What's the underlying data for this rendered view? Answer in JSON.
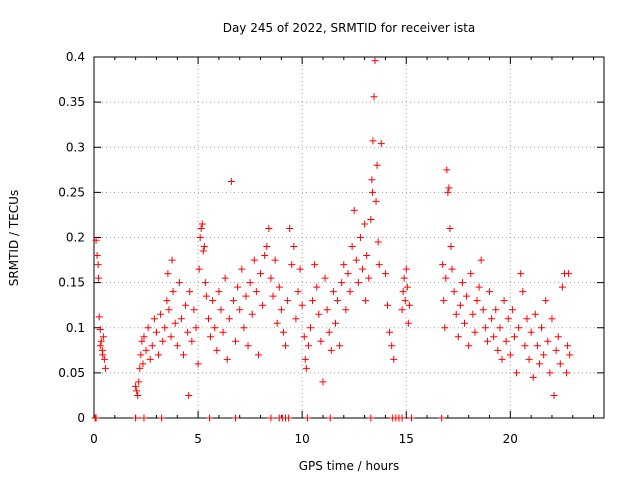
{
  "chart_data": {
    "type": "scatter",
    "title": "Day 245 of 2022, SRMTID for receiver ista",
    "xlabel": "GPS time / hours",
    "ylabel": "SRMTID / TECUs",
    "xlim": [
      0,
      24.5
    ],
    "ylim": [
      0,
      0.4
    ],
    "grid": true,
    "marker": "+",
    "color": "#ff0000",
    "x_ticks": [
      0,
      5,
      10,
      15,
      20
    ],
    "x_tick_labels": [
      "0",
      "5",
      "10",
      "15",
      "20"
    ],
    "y_ticks": [
      0,
      0.05,
      0.1,
      0.15,
      0.2,
      0.25,
      0.3,
      0.35,
      0.4
    ],
    "y_tick_labels": [
      "0",
      "0.05",
      "0.1",
      "0.15",
      "0.2",
      "0.25",
      "0.3",
      "0.35",
      "0.4"
    ],
    "series": [
      {
        "name": "SRMTID",
        "points": [
          [
            0.1,
            0.197
          ],
          [
            0.15,
            0.18
          ],
          [
            0.2,
            0.17
          ],
          [
            0.22,
            0.155
          ],
          [
            0.25,
            0.112
          ],
          [
            0.3,
            0.098
          ],
          [
            0.35,
            0.085
          ],
          [
            0.4,
            0.075
          ],
          [
            0.45,
            0.09
          ],
          [
            0.5,
            0.065
          ],
          [
            0.55,
            0.055
          ],
          [
            0.3,
            0.08
          ],
          [
            0.42,
            0.07
          ],
          [
            2.0,
            0.035
          ],
          [
            2.05,
            0.03
          ],
          [
            2.1,
            0.025
          ],
          [
            2.15,
            0.04
          ],
          [
            2.2,
            0.055
          ],
          [
            2.25,
            0.07
          ],
          [
            2.3,
            0.085
          ],
          [
            2.35,
            0.06
          ],
          [
            2.4,
            0.09
          ],
          [
            2.5,
            0.075
          ],
          [
            2.6,
            0.1
          ],
          [
            2.7,
            0.065
          ],
          [
            2.8,
            0.08
          ],
          [
            2.9,
            0.11
          ],
          [
            3.0,
            0.095
          ],
          [
            3.1,
            0.07
          ],
          [
            3.2,
            0.115
          ],
          [
            3.3,
            0.085
          ],
          [
            3.4,
            0.1
          ],
          [
            3.5,
            0.13
          ],
          [
            3.55,
            0.16
          ],
          [
            3.6,
            0.12
          ],
          [
            3.7,
            0.09
          ],
          [
            3.75,
            0.175
          ],
          [
            3.8,
            0.14
          ],
          [
            3.9,
            0.105
          ],
          [
            4.0,
            0.08
          ],
          [
            4.1,
            0.15
          ],
          [
            4.2,
            0.11
          ],
          [
            4.3,
            0.07
          ],
          [
            4.4,
            0.125
          ],
          [
            4.5,
            0.095
          ],
          [
            4.55,
            0.025
          ],
          [
            4.6,
            0.14
          ],
          [
            4.7,
            0.085
          ],
          [
            4.8,
            0.12
          ],
          [
            4.9,
            0.1
          ],
          [
            5.0,
            0.06
          ],
          [
            5.05,
            0.165
          ],
          [
            5.1,
            0.2
          ],
          [
            5.15,
            0.21
          ],
          [
            5.2,
            0.215
          ],
          [
            5.25,
            0.185
          ],
          [
            5.3,
            0.19
          ],
          [
            5.35,
            0.15
          ],
          [
            5.4,
            0.135
          ],
          [
            5.5,
            0.11
          ],
          [
            5.6,
            0.09
          ],
          [
            5.7,
            0.13
          ],
          [
            5.8,
            0.1
          ],
          [
            5.9,
            0.075
          ],
          [
            6.0,
            0.14
          ],
          [
            6.1,
            0.12
          ],
          [
            6.2,
            0.095
          ],
          [
            6.3,
            0.155
          ],
          [
            6.4,
            0.065
          ],
          [
            6.5,
            0.11
          ],
          [
            6.6,
            0.262
          ],
          [
            6.7,
            0.13
          ],
          [
            6.8,
            0.085
          ],
          [
            6.9,
            0.145
          ],
          [
            7.0,
            0.12
          ],
          [
            7.1,
            0.165
          ],
          [
            7.2,
            0.1
          ],
          [
            7.3,
            0.135
          ],
          [
            7.4,
            0.08
          ],
          [
            7.5,
            0.15
          ],
          [
            7.6,
            0.115
          ],
          [
            7.7,
            0.175
          ],
          [
            7.8,
            0.14
          ],
          [
            7.9,
            0.07
          ],
          [
            8.0,
            0.16
          ],
          [
            8.1,
            0.125
          ],
          [
            8.2,
            0.18
          ],
          [
            8.3,
            0.19
          ],
          [
            8.4,
            0.21
          ],
          [
            8.5,
            0.155
          ],
          [
            8.6,
            0.135
          ],
          [
            8.7,
            0.175
          ],
          [
            8.8,
            0.105
          ],
          [
            8.9,
            0.145
          ],
          [
            9.0,
            0.12
          ],
          [
            9.1,
            0.095
          ],
          [
            9.2,
            0.08
          ],
          [
            9.3,
            0.13
          ],
          [
            9.4,
            0.21
          ],
          [
            9.5,
            0.17
          ],
          [
            9.6,
            0.19
          ],
          [
            9.7,
            0.11
          ],
          [
            9.8,
            0.14
          ],
          [
            9.9,
            0.165
          ],
          [
            10.0,
            0.125
          ],
          [
            10.1,
            0.09
          ],
          [
            10.15,
            0.065
          ],
          [
            10.2,
            0.055
          ],
          [
            10.3,
            0.08
          ],
          [
            10.4,
            0.1
          ],
          [
            10.5,
            0.13
          ],
          [
            10.6,
            0.17
          ],
          [
            10.7,
            0.145
          ],
          [
            10.8,
            0.115
          ],
          [
            10.9,
            0.085
          ],
          [
            11.0,
            0.04
          ],
          [
            11.1,
            0.155
          ],
          [
            11.2,
            0.12
          ],
          [
            11.3,
            0.095
          ],
          [
            11.4,
            0.075
          ],
          [
            11.5,
            0.14
          ],
          [
            11.6,
            0.105
          ],
          [
            11.7,
            0.13
          ],
          [
            11.8,
            0.08
          ],
          [
            11.9,
            0.15
          ],
          [
            12.0,
            0.17
          ],
          [
            12.1,
            0.12
          ],
          [
            12.2,
            0.16
          ],
          [
            12.3,
            0.14
          ],
          [
            12.4,
            0.19
          ],
          [
            12.5,
            0.23
          ],
          [
            12.6,
            0.175
          ],
          [
            12.7,
            0.15
          ],
          [
            12.8,
            0.2
          ],
          [
            12.9,
            0.165
          ],
          [
            13.0,
            0.215
          ],
          [
            13.05,
            0.13
          ],
          [
            13.1,
            0.18
          ],
          [
            13.2,
            0.155
          ],
          [
            13.3,
            0.22
          ],
          [
            13.35,
            0.264
          ],
          [
            13.38,
            0.25
          ],
          [
            13.4,
            0.307
          ],
          [
            13.45,
            0.356
          ],
          [
            13.5,
            0.396
          ],
          [
            13.55,
            0.24
          ],
          [
            13.6,
            0.28
          ],
          [
            13.65,
            0.195
          ],
          [
            13.7,
            0.17
          ],
          [
            13.8,
            0.304
          ],
          [
            14.0,
            0.16
          ],
          [
            14.1,
            0.125
          ],
          [
            14.2,
            0.095
          ],
          [
            14.3,
            0.08
          ],
          [
            14.4,
            0.065
          ],
          [
            14.8,
            0.12
          ],
          [
            14.85,
            0.14
          ],
          [
            14.9,
            0.155
          ],
          [
            14.95,
            0.13
          ],
          [
            15.0,
            0.165
          ],
          [
            15.05,
            0.145
          ],
          [
            15.1,
            0.105
          ],
          [
            15.15,
            0.125
          ],
          [
            16.75,
            0.17
          ],
          [
            16.8,
            0.13
          ],
          [
            16.85,
            0.1
          ],
          [
            16.9,
            0.155
          ],
          [
            16.95,
            0.275
          ],
          [
            17.0,
            0.25
          ],
          [
            17.05,
            0.255
          ],
          [
            17.1,
            0.21
          ],
          [
            17.15,
            0.19
          ],
          [
            17.2,
            0.165
          ],
          [
            17.3,
            0.14
          ],
          [
            17.4,
            0.115
          ],
          [
            17.5,
            0.09
          ],
          [
            17.6,
            0.125
          ],
          [
            17.7,
            0.15
          ],
          [
            17.8,
            0.105
          ],
          [
            17.9,
            0.135
          ],
          [
            18.0,
            0.08
          ],
          [
            18.1,
            0.16
          ],
          [
            18.2,
            0.115
          ],
          [
            18.3,
            0.095
          ],
          [
            18.4,
            0.13
          ],
          [
            18.5,
            0.145
          ],
          [
            18.6,
            0.175
          ],
          [
            18.7,
            0.12
          ],
          [
            18.8,
            0.1
          ],
          [
            18.9,
            0.085
          ],
          [
            19.0,
            0.14
          ],
          [
            19.1,
            0.11
          ],
          [
            19.2,
            0.09
          ],
          [
            19.3,
            0.12
          ],
          [
            19.4,
            0.075
          ],
          [
            19.5,
            0.1
          ],
          [
            19.6,
            0.065
          ],
          [
            19.7,
            0.13
          ],
          [
            19.8,
            0.085
          ],
          [
            19.9,
            0.11
          ],
          [
            20.0,
            0.07
          ],
          [
            20.1,
            0.12
          ],
          [
            20.2,
            0.09
          ],
          [
            20.3,
            0.05
          ],
          [
            20.4,
            0.1
          ],
          [
            20.5,
            0.16
          ],
          [
            20.6,
            0.14
          ],
          [
            20.7,
            0.08
          ],
          [
            20.8,
            0.11
          ],
          [
            20.9,
            0.065
          ],
          [
            21.0,
            0.095
          ],
          [
            21.1,
            0.045
          ],
          [
            21.2,
            0.115
          ],
          [
            21.3,
            0.08
          ],
          [
            21.4,
            0.06
          ],
          [
            21.5,
            0.1
          ],
          [
            21.6,
            0.07
          ],
          [
            21.7,
            0.13
          ],
          [
            21.8,
            0.085
          ],
          [
            21.9,
            0.05
          ],
          [
            22.0,
            0.11
          ],
          [
            22.1,
            0.025
          ],
          [
            22.2,
            0.075
          ],
          [
            22.3,
            0.09
          ],
          [
            22.4,
            0.06
          ],
          [
            22.5,
            0.145
          ],
          [
            22.6,
            0.16
          ],
          [
            22.7,
            0.05
          ],
          [
            22.75,
            0.08
          ],
          [
            22.8,
            0.16
          ],
          [
            22.85,
            0.07
          ],
          [
            0.05,
            0
          ],
          [
            0.1,
            0
          ],
          [
            2.0,
            0
          ],
          [
            2.4,
            0
          ],
          [
            3.25,
            0
          ],
          [
            5.55,
            0
          ],
          [
            6.8,
            0
          ],
          [
            8.5,
            0
          ],
          [
            8.9,
            0
          ],
          [
            9.05,
            0
          ],
          [
            9.2,
            0
          ],
          [
            9.35,
            0
          ],
          [
            10.25,
            0
          ],
          [
            11.35,
            0
          ],
          [
            13.3,
            0
          ],
          [
            14.35,
            0
          ],
          [
            14.5,
            0
          ],
          [
            14.65,
            0
          ],
          [
            14.8,
            0
          ],
          [
            15.25,
            0
          ],
          [
            16.7,
            0
          ]
        ]
      }
    ]
  }
}
